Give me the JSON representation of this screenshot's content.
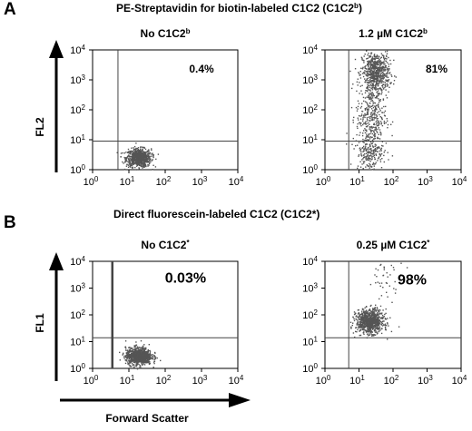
{
  "figure": {
    "panels": [
      {
        "letter": "A",
        "title": "PE-Streptavidin for biotin-labeled C1C2 (C1C2",
        "title_sup": "b",
        "title_end": ")",
        "y_axis_label": "FL2"
      },
      {
        "letter": "B",
        "title": "Direct fluorescein-labeled C1C2 (C1C2*)",
        "title_sup": "",
        "title_end": "",
        "y_axis_label": "FL1"
      }
    ],
    "x_axis_label": "Forward Scatter",
    "colors": {
      "dots": "#555555",
      "axes": "#000000",
      "gate": "#444444"
    }
  },
  "chart_data": [
    {
      "type": "scatter",
      "panel": "A",
      "title": "No C1C2",
      "title_sup": "b",
      "percent_label": "0.4%",
      "ylabel": "FL2",
      "x_scale": "log",
      "y_scale": "log",
      "xlim": [
        1,
        10000
      ],
      "ylim": [
        1,
        10000
      ],
      "x_ticks": [
        "10",
        "10",
        "10",
        "10",
        "10"
      ],
      "x_tick_exponents": [
        "0",
        "1",
        "2",
        "3",
        "4"
      ],
      "y_ticks": [
        "10",
        "10",
        "10",
        "10",
        "10"
      ],
      "y_tick_exponents": [
        "0",
        "1",
        "2",
        "3",
        "4"
      ],
      "gate": {
        "x": 5,
        "y": 9
      },
      "populations": [
        {
          "x_center": 18,
          "y_center": 2.6,
          "x_spread": 0.17,
          "y_spread": 0.15,
          "count": 800
        }
      ]
    },
    {
      "type": "scatter",
      "panel": "A",
      "title": "1.2 µM C1C2",
      "title_sup": "b",
      "percent_label": "81%",
      "ylabel": "",
      "x_scale": "log",
      "y_scale": "log",
      "xlim": [
        1,
        10000
      ],
      "ylim": [
        1,
        10000
      ],
      "x_ticks": [
        "10",
        "10",
        "10",
        "10",
        "10"
      ],
      "x_tick_exponents": [
        "0",
        "1",
        "2",
        "3",
        "4"
      ],
      "y_ticks": [
        "10",
        "10",
        "10",
        "10",
        "10"
      ],
      "y_tick_exponents": [
        "0",
        "1",
        "2",
        "3",
        "4"
      ],
      "gate": {
        "x": 5,
        "y": 9
      },
      "populations": [
        {
          "x_center": 30,
          "y_center": 1800,
          "x_spread": 0.2,
          "y_spread": 0.35,
          "count": 650
        },
        {
          "x_center": 22,
          "y_center": 60,
          "x_spread": 0.22,
          "y_spread": 0.6,
          "count": 350
        },
        {
          "x_center": 20,
          "y_center": 4,
          "x_spread": 0.2,
          "y_spread": 0.3,
          "count": 200
        }
      ]
    },
    {
      "type": "scatter",
      "panel": "B",
      "title": "No C1C2",
      "title_sup": "*",
      "percent_label": "0.03%",
      "ylabel": "FL1",
      "x_scale": "log",
      "y_scale": "log",
      "xlim": [
        1,
        10000
      ],
      "ylim": [
        1,
        10000
      ],
      "x_ticks": [
        "10",
        "10",
        "10",
        "10",
        "10"
      ],
      "x_tick_exponents": [
        "0",
        "1",
        "2",
        "3",
        "4"
      ],
      "y_ticks": [
        "10",
        "10",
        "10",
        "10",
        "10"
      ],
      "y_tick_exponents": [
        "0",
        "1",
        "2",
        "3",
        "4"
      ],
      "gate": {
        "x": 3.5,
        "y": 14
      },
      "populations": [
        {
          "x_center": 18,
          "y_center": 3,
          "x_spread": 0.18,
          "y_spread": 0.16,
          "count": 900
        }
      ]
    },
    {
      "type": "scatter",
      "panel": "B",
      "title": "0.25 µM C1C2",
      "title_sup": "*",
      "percent_label": "98%",
      "ylabel": "",
      "x_scale": "log",
      "y_scale": "log",
      "xlim": [
        1,
        10000
      ],
      "ylim": [
        1,
        10000
      ],
      "x_ticks": [
        "10",
        "10",
        "10",
        "10",
        "10"
      ],
      "x_tick_exponents": [
        "0",
        "1",
        "2",
        "3",
        "4"
      ],
      "y_ticks": [
        "10",
        "10",
        "10",
        "10",
        "10"
      ],
      "y_tick_exponents": [
        "0",
        "1",
        "2",
        "3",
        "4"
      ],
      "gate": {
        "x": 5,
        "y": 14
      },
      "populations": [
        {
          "x_center": 20,
          "y_center": 60,
          "x_spread": 0.2,
          "y_spread": 0.22,
          "count": 850
        },
        {
          "x_center": 60,
          "y_center": 2000,
          "x_spread": 0.25,
          "y_spread": 0.35,
          "count": 40
        }
      ]
    }
  ]
}
